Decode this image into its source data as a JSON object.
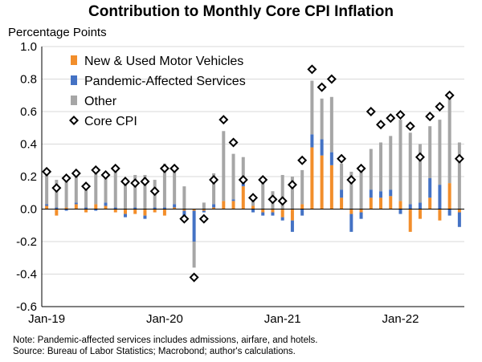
{
  "chart_data": {
    "type": "bar",
    "title": "Contribution to Monthly Core CPI Inflation",
    "ylabel": "Percentage Points",
    "ylim": [
      -0.6,
      1.0
    ],
    "yticks": [
      -0.6,
      -0.4,
      -0.2,
      0.0,
      0.2,
      0.4,
      0.6,
      0.8,
      1.0
    ],
    "ytick_labels": [
      "-0.6",
      "-0.4",
      "-0.2",
      "0.0",
      "0.2",
      "0.4",
      "0.6",
      "0.8",
      "1.0"
    ],
    "x_tick_labels": [
      {
        "label": "Jan-19",
        "index": 0
      },
      {
        "label": "Jan-20",
        "index": 12
      },
      {
        "label": "Jan-21",
        "index": 24
      },
      {
        "label": "Jan-22",
        "index": 36
      }
    ],
    "legend_position": "top-left",
    "colors": {
      "New & Used Motor Vehicles": "#f28e2b",
      "Pandemic-Affected Services": "#4472c4",
      "Other": "#a6a6a6",
      "Core CPI": "#000000"
    },
    "categories": [
      "2019-01",
      "2019-02",
      "2019-03",
      "2019-04",
      "2019-05",
      "2019-06",
      "2019-07",
      "2019-08",
      "2019-09",
      "2019-10",
      "2019-11",
      "2019-12",
      "2020-01",
      "2020-02",
      "2020-03",
      "2020-04",
      "2020-05",
      "2020-06",
      "2020-07",
      "2020-08",
      "2020-09",
      "2020-10",
      "2020-11",
      "2020-12",
      "2021-01",
      "2021-02",
      "2021-03",
      "2021-04",
      "2021-05",
      "2021-06",
      "2021-07",
      "2021-08",
      "2021-09",
      "2021-10",
      "2021-11",
      "2021-12",
      "2022-01",
      "2022-02",
      "2022-03",
      "2022-04",
      "2022-05",
      "2022-06",
      "2022-07"
    ],
    "series": [
      {
        "name": "New & Used Motor Vehicles",
        "kind": "stacked-bar",
        "values": [
          0.02,
          -0.04,
          0.01,
          0.03,
          -0.02,
          0.03,
          0.02,
          -0.02,
          -0.03,
          -0.03,
          -0.04,
          -0.02,
          -0.04,
          0.01,
          -0.01,
          -0.01,
          -0.01,
          0.01,
          0.05,
          0.05,
          0.14,
          0.02,
          -0.02,
          -0.02,
          -0.05,
          -0.07,
          0.03,
          0.38,
          0.33,
          0.27,
          0.07,
          -0.03,
          -0.02,
          0.07,
          0.07,
          0.08,
          0.05,
          -0.14,
          -0.06,
          0.07,
          -0.07,
          0.16,
          -0.02
        ]
      },
      {
        "name": "Pandemic-Affected Services",
        "kind": "stacked-bar",
        "values": [
          0.01,
          0.01,
          -0.01,
          0.01,
          0.01,
          -0.01,
          0.02,
          0.01,
          -0.02,
          0.01,
          -0.02,
          0.01,
          0.01,
          0.02,
          -0.05,
          -0.19,
          -0.01,
          0.02,
          0.0,
          0.01,
          0.02,
          -0.02,
          -0.02,
          -0.02,
          -0.02,
          -0.07,
          -0.04,
          0.08,
          0.1,
          0.08,
          0.05,
          -0.11,
          -0.04,
          0.05,
          0.04,
          0.04,
          -0.03,
          0.03,
          0.04,
          0.12,
          0.15,
          -0.04,
          -0.09
        ]
      },
      {
        "name": "Other",
        "kind": "stacked-bar",
        "values": [
          0.22,
          0.17,
          0.2,
          0.2,
          0.14,
          0.22,
          0.17,
          0.22,
          0.18,
          0.2,
          0.21,
          0.17,
          0.27,
          0.22,
          0.14,
          -0.16,
          0.04,
          0.19,
          0.43,
          0.28,
          0.16,
          0.07,
          0.17,
          0.11,
          0.21,
          0.2,
          0.21,
          0.33,
          0.25,
          0.34,
          0.16,
          0.23,
          0.25,
          0.25,
          0.3,
          0.33,
          0.5,
          0.44,
          0.36,
          0.32,
          0.4,
          0.56,
          0.41
        ]
      },
      {
        "name": "Core CPI",
        "kind": "marker",
        "values": [
          0.23,
          0.13,
          0.19,
          0.22,
          0.14,
          0.24,
          0.21,
          0.25,
          0.17,
          0.16,
          0.17,
          0.11,
          0.25,
          0.25,
          -0.06,
          -0.42,
          -0.06,
          0.18,
          0.55,
          0.41,
          0.18,
          0.07,
          0.18,
          0.06,
          0.05,
          0.15,
          0.3,
          0.86,
          0.75,
          0.8,
          0.31,
          0.18,
          0.25,
          0.6,
          0.52,
          0.56,
          0.58,
          0.51,
          0.32,
          0.57,
          0.63,
          0.7,
          0.31
        ]
      }
    ]
  },
  "note": "Note: Pandemic-affected services includes admissions, airfare, and hotels.",
  "source": "Source: Bureau of Labor Statistics; Macrobond; author's calculations."
}
